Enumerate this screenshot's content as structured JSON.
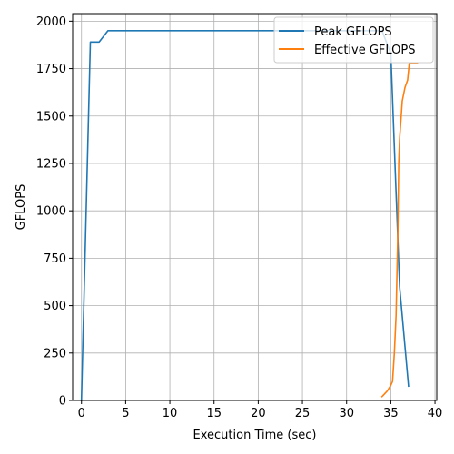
{
  "chart_data": {
    "type": "line",
    "title": "",
    "xlabel": "Execution Time (sec)",
    "ylabel": "GFLOPS",
    "xlim": [
      -1,
      40.2
    ],
    "ylim": [
      0,
      2040
    ],
    "x_ticks": [
      0,
      5,
      10,
      15,
      20,
      25,
      30,
      35,
      40
    ],
    "y_ticks": [
      0,
      250,
      500,
      750,
      1000,
      1250,
      1500,
      1750,
      2000
    ],
    "grid": true,
    "legend_position": "top-right",
    "series": [
      {
        "name": "Peak GFLOPS",
        "color": "#1f77b4",
        "points": [
          [
            0,
            0
          ],
          [
            1,
            1890
          ],
          [
            2,
            1890
          ],
          [
            3,
            1950
          ],
          [
            10,
            1950
          ],
          [
            20,
            1950
          ],
          [
            34,
            1950
          ],
          [
            35,
            1830
          ],
          [
            36,
            600
          ],
          [
            37,
            75
          ]
        ]
      },
      {
        "name": "Effective GFLOPS",
        "color": "#ff7f0e",
        "points": [
          [
            34,
            20
          ],
          [
            34.6,
            50
          ],
          [
            35,
            80
          ],
          [
            35.2,
            100
          ],
          [
            35.4,
            250
          ],
          [
            35.6,
            450
          ],
          [
            35.8,
            900
          ],
          [
            35.9,
            1250
          ],
          [
            36,
            1380
          ],
          [
            36.3,
            1580
          ],
          [
            36.6,
            1650
          ],
          [
            36.9,
            1690
          ],
          [
            37.1,
            1780
          ],
          [
            37.5,
            1780
          ],
          [
            38,
            1780
          ]
        ]
      }
    ]
  }
}
